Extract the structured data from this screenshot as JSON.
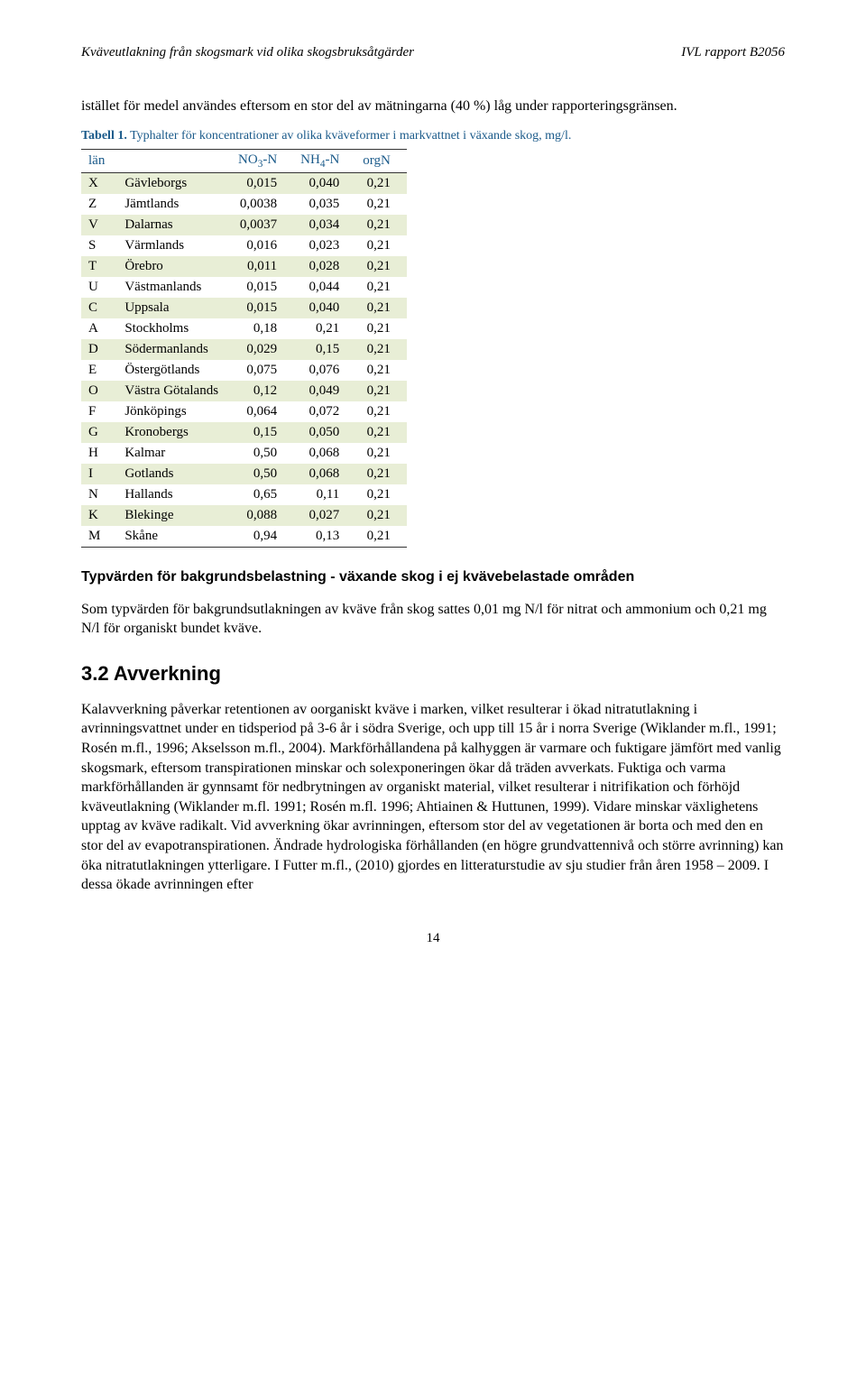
{
  "header": {
    "left": "Kväveutlakning från skogsmark vid olika skogsbruksåtgärder",
    "right": "IVL rapport B2056"
  },
  "intro": "istället för medel användes eftersom en stor del av mätningarna (40 %) låg under rapporteringsgränsen.",
  "table_caption": {
    "label": "Tabell 1.",
    "text": "Typhalter för koncentrationer av olika kväveformer i markvattnet i växande skog, mg/l."
  },
  "table": {
    "header_row_bg": "#ffffff",
    "odd_row_bg": "#e8eed6",
    "border_color": "#333333",
    "header_color": "#1a5a8a",
    "columns": [
      "län",
      "",
      "NO₃-N",
      "NH₄-N",
      "orgN"
    ],
    "rows": [
      [
        "X",
        "Gävleborgs",
        "0,015",
        "0,040",
        "0,21"
      ],
      [
        "Z",
        "Jämtlands",
        "0,0038",
        "0,035",
        "0,21"
      ],
      [
        "V",
        "Dalarnas",
        "0,0037",
        "0,034",
        "0,21"
      ],
      [
        "S",
        "Värmlands",
        "0,016",
        "0,023",
        "0,21"
      ],
      [
        "T",
        "Örebro",
        "0,011",
        "0,028",
        "0,21"
      ],
      [
        "U",
        "Västmanlands",
        "0,015",
        "0,044",
        "0,21"
      ],
      [
        "C",
        "Uppsala",
        "0,015",
        "0,040",
        "0,21"
      ],
      [
        "A",
        "Stockholms",
        "0,18",
        "0,21",
        "0,21"
      ],
      [
        "D",
        "Södermanlands",
        "0,029",
        "0,15",
        "0,21"
      ],
      [
        "E",
        "Östergötlands",
        "0,075",
        "0,076",
        "0,21"
      ],
      [
        "O",
        "Västra Götalands",
        "0,12",
        "0,049",
        "0,21"
      ],
      [
        "F",
        "Jönköpings",
        "0,064",
        "0,072",
        "0,21"
      ],
      [
        "G",
        "Kronobergs",
        "0,15",
        "0,050",
        "0,21"
      ],
      [
        "H",
        "Kalmar",
        "0,50",
        "0,068",
        "0,21"
      ],
      [
        "I",
        "Gotlands",
        "0,50",
        "0,068",
        "0,21"
      ],
      [
        "N",
        "Hallands",
        "0,65",
        "0,11",
        "0,21"
      ],
      [
        "K",
        "Blekinge",
        "0,088",
        "0,027",
        "0,21"
      ],
      [
        "M",
        "Skåne",
        "0,94",
        "0,13",
        "0,21"
      ]
    ]
  },
  "sub_heading": "Typvärden för bakgrundsbelastning - växande skog i ej kvävebelastade områden",
  "sub_body": "Som typvärden för bakgrundsutlakningen av kväve från skog sattes 0,01 mg N/l för nitrat och ammonium och 0,21 mg N/l för organiskt bundet kväve.",
  "section_head": "3.2 Avverkning",
  "section_body": "Kalavverkning påverkar retentionen av oorganiskt kväve i marken, vilket resulterar i ökad nitratutlakning i avrinningsvattnet under en tidsperiod på 3-6 år i södra Sverige, och upp till 15 år i norra Sverige (Wiklander m.fl., 1991; Rosén m.fl., 1996; Akselsson m.fl., 2004). Markförhållandena på kalhyggen är varmare och fuktigare jämfört med vanlig skogsmark, eftersom transpirationen minskar och solexponeringen ökar då träden avverkats. Fuktiga och varma markförhållanden är gynnsamt för nedbrytningen av organiskt material, vilket resulterar i nitrifikation och förhöjd kväveutlakning (Wiklander m.fl. 1991; Rosén m.fl. 1996; Ahtiainen & Huttunen, 1999). Vidare minskar växlighetens upptag av kväve radikalt. Vid avverkning ökar avrinningen, eftersom stor del av vegetationen är borta och med den en stor del av evapotranspirationen. Ändrade hydrologiska förhållanden (en högre grundvattennivå och större avrinning) kan öka nitratutlakningen ytterligare. I Futter m.fl., (2010) gjordes en litteraturstudie av sju studier från åren 1958 – 2009. I dessa ökade avrinningen efter",
  "page_number": "14"
}
